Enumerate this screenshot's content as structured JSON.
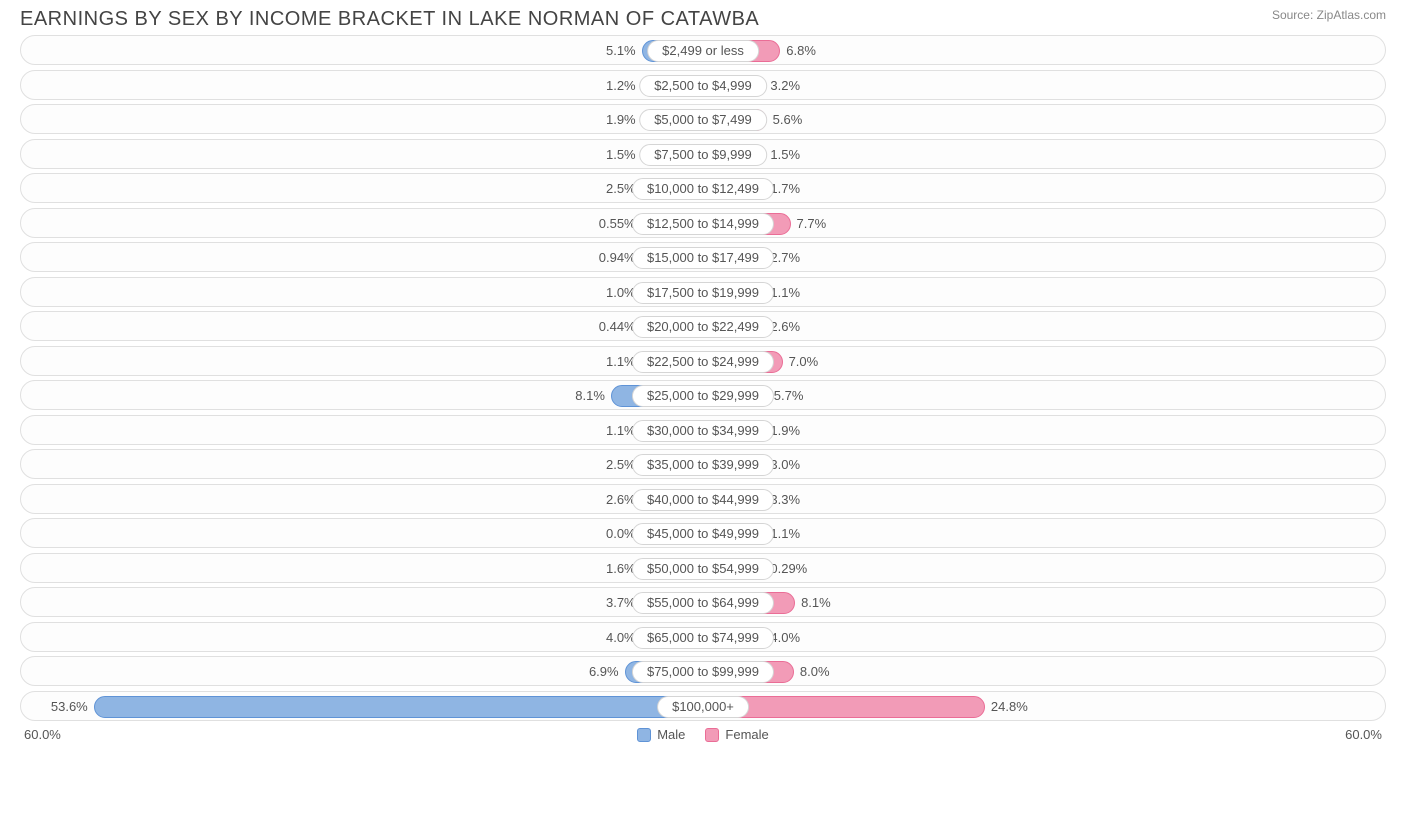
{
  "title": "EARNINGS BY SEX BY INCOME BRACKET IN LAKE NORMAN OF CATAWBA",
  "source": "Source: ZipAtlas.com",
  "axis_max_label": "60.0%",
  "axis_max_value": 60.0,
  "colors": {
    "male_fill": "#8fb5e3",
    "male_stroke": "#5f93d6",
    "female_fill": "#f29bb7",
    "female_stroke": "#ea6d96",
    "track_border": "#e0e0e0",
    "track_bg": "#fdfdfd",
    "text": "#555555",
    "title_text": "#444444",
    "source_text": "#888888",
    "bg": "#ffffff"
  },
  "legend": {
    "male": "Male",
    "female": "Female"
  },
  "center_label_min_half_pct": 9.0,
  "rows": [
    {
      "label": "$2,499 or less",
      "male": 5.1,
      "male_txt": "5.1%",
      "female": 6.8,
      "female_txt": "6.8%"
    },
    {
      "label": "$2,500 to $4,999",
      "male": 1.2,
      "male_txt": "1.2%",
      "female": 3.2,
      "female_txt": "3.2%"
    },
    {
      "label": "$5,000 to $7,499",
      "male": 1.9,
      "male_txt": "1.9%",
      "female": 5.6,
      "female_txt": "5.6%"
    },
    {
      "label": "$7,500 to $9,999",
      "male": 1.5,
      "male_txt": "1.5%",
      "female": 1.5,
      "female_txt": "1.5%"
    },
    {
      "label": "$10,000 to $12,499",
      "male": 2.5,
      "male_txt": "2.5%",
      "female": 1.7,
      "female_txt": "1.7%"
    },
    {
      "label": "$12,500 to $14,999",
      "male": 0.55,
      "male_txt": "0.55%",
      "female": 7.7,
      "female_txt": "7.7%"
    },
    {
      "label": "$15,000 to $17,499",
      "male": 0.94,
      "male_txt": "0.94%",
      "female": 2.7,
      "female_txt": "2.7%"
    },
    {
      "label": "$17,500 to $19,999",
      "male": 1.0,
      "male_txt": "1.0%",
      "female": 1.1,
      "female_txt": "1.1%"
    },
    {
      "label": "$20,000 to $22,499",
      "male": 0.44,
      "male_txt": "0.44%",
      "female": 2.6,
      "female_txt": "2.6%"
    },
    {
      "label": "$22,500 to $24,999",
      "male": 1.1,
      "male_txt": "1.1%",
      "female": 7.0,
      "female_txt": "7.0%"
    },
    {
      "label": "$25,000 to $29,999",
      "male": 8.1,
      "male_txt": "8.1%",
      "female": 5.7,
      "female_txt": "5.7%"
    },
    {
      "label": "$30,000 to $34,999",
      "male": 1.1,
      "male_txt": "1.1%",
      "female": 1.9,
      "female_txt": "1.9%"
    },
    {
      "label": "$35,000 to $39,999",
      "male": 2.5,
      "male_txt": "2.5%",
      "female": 3.0,
      "female_txt": "3.0%"
    },
    {
      "label": "$40,000 to $44,999",
      "male": 2.6,
      "male_txt": "2.6%",
      "female": 3.3,
      "female_txt": "3.3%"
    },
    {
      "label": "$45,000 to $49,999",
      "male": 0.0,
      "male_txt": "0.0%",
      "female": 1.1,
      "female_txt": "1.1%"
    },
    {
      "label": "$50,000 to $54,999",
      "male": 1.6,
      "male_txt": "1.6%",
      "female": 0.29,
      "female_txt": "0.29%"
    },
    {
      "label": "$55,000 to $64,999",
      "male": 3.7,
      "male_txt": "3.7%",
      "female": 8.1,
      "female_txt": "8.1%"
    },
    {
      "label": "$65,000 to $74,999",
      "male": 4.0,
      "male_txt": "4.0%",
      "female": 4.0,
      "female_txt": "4.0%"
    },
    {
      "label": "$75,000 to $99,999",
      "male": 6.9,
      "male_txt": "6.9%",
      "female": 8.0,
      "female_txt": "8.0%"
    },
    {
      "label": "$100,000+",
      "male": 53.6,
      "male_txt": "53.6%",
      "female": 24.8,
      "female_txt": "24.8%"
    }
  ]
}
